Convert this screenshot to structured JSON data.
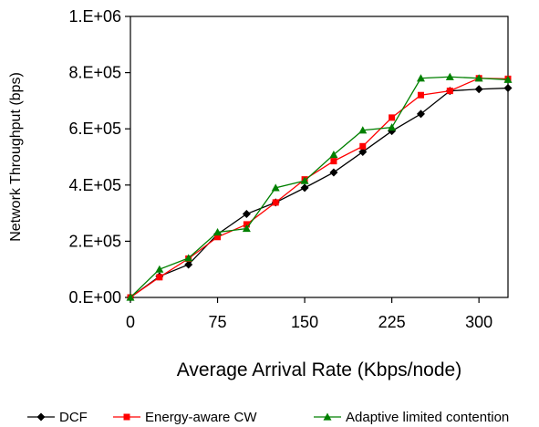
{
  "chart_data": {
    "type": "line",
    "title": "",
    "xlabel": "Average Arrival Rate (Kbps/node)",
    "ylabel": "Network Throughput (bps)",
    "xlim": [
      0,
      325
    ],
    "ylim": [
      0,
      1000000
    ],
    "x_ticks": [
      0,
      75,
      150,
      225,
      300
    ],
    "x_tick_labels": [
      "0",
      "75",
      "150",
      "225",
      "300"
    ],
    "y_ticks": [
      0,
      200000,
      400000,
      600000,
      800000,
      1000000
    ],
    "y_tick_labels": [
      "0.E+00",
      "2.E+05",
      "4.E+05",
      "6.E+05",
      "8.E+05",
      "1.E+06"
    ],
    "grid": false,
    "legend_position": "bottom",
    "x": [
      0,
      25,
      50,
      75,
      100,
      125,
      150,
      175,
      200,
      225,
      250,
      275,
      300,
      325
    ],
    "series": [
      {
        "name": "DCF",
        "color": "#000000",
        "marker": "diamond",
        "values": [
          0,
          75000,
          117000,
          225000,
          297000,
          338000,
          390000,
          445000,
          518000,
          592000,
          653000,
          735000,
          741000,
          745000
        ]
      },
      {
        "name": "Energy-aware CW",
        "color": "#ff0000",
        "marker": "square",
        "values": [
          0,
          72000,
          138000,
          215000,
          260000,
          338000,
          420000,
          485000,
          538000,
          640000,
          720000,
          735000,
          780000,
          778000
        ]
      },
      {
        "name": "Adaptive limited contention",
        "color": "#008000",
        "marker": "triangle",
        "values": [
          0,
          100000,
          140000,
          232000,
          245000,
          390000,
          415000,
          508000,
          595000,
          605000,
          780000,
          785000,
          780000,
          775000
        ]
      }
    ]
  }
}
